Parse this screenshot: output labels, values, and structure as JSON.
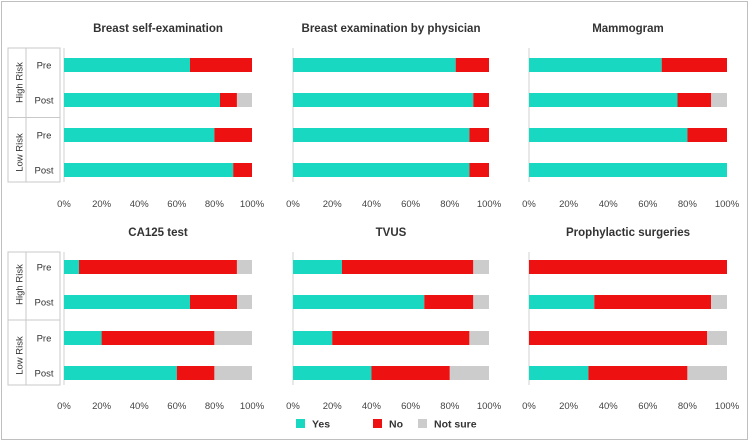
{
  "colors": {
    "yes": "#19d8c2",
    "no": "#ee1111",
    "not_sure": "#cccccc"
  },
  "legend": [
    {
      "key": "yes",
      "label": "Yes"
    },
    {
      "key": "no",
      "label": "No"
    },
    {
      "key": "not_sure",
      "label": "Not sure"
    }
  ],
  "row_groups": [
    {
      "label": "High Risk",
      "rows": [
        "Pre",
        "Post"
      ]
    },
    {
      "label": "Low Risk",
      "rows": [
        "Pre",
        "Post"
      ]
    }
  ],
  "x_ticks": [
    "0%",
    "20%",
    "40%",
    "60%",
    "80%",
    "100%"
  ],
  "chart_data": [
    {
      "type": "bar",
      "stacked": true,
      "orientation": "horizontal",
      "title": "Breast self-examination",
      "categories": [
        "High Risk Pre",
        "High Risk Post",
        "Low Risk Pre",
        "Low Risk Post"
      ],
      "series": [
        {
          "name": "Yes",
          "values": [
            67,
            83,
            80,
            90
          ]
        },
        {
          "name": "No",
          "values": [
            33,
            9,
            20,
            10
          ]
        },
        {
          "name": "Not sure",
          "values": [
            0,
            8,
            0,
            0
          ]
        }
      ],
      "xlim": [
        0,
        100
      ]
    },
    {
      "type": "bar",
      "stacked": true,
      "orientation": "horizontal",
      "title": "Breast examination by physician",
      "categories": [
        "High Risk Pre",
        "High Risk Post",
        "Low Risk Pre",
        "Low Risk Post"
      ],
      "series": [
        {
          "name": "Yes",
          "values": [
            83,
            92,
            90,
            90
          ]
        },
        {
          "name": "No",
          "values": [
            17,
            8,
            10,
            10
          ]
        },
        {
          "name": "Not sure",
          "values": [
            0,
            0,
            0,
            0
          ]
        }
      ],
      "xlim": [
        0,
        100
      ]
    },
    {
      "type": "bar",
      "stacked": true,
      "orientation": "horizontal",
      "title": "Mammogram",
      "categories": [
        "High Risk Pre",
        "High Risk Post",
        "Low Risk Pre",
        "Low Risk Post"
      ],
      "series": [
        {
          "name": "Yes",
          "values": [
            67,
            75,
            80,
            100
          ]
        },
        {
          "name": "No",
          "values": [
            33,
            17,
            20,
            0
          ]
        },
        {
          "name": "Not sure",
          "values": [
            0,
            8,
            0,
            0
          ]
        }
      ],
      "xlim": [
        0,
        100
      ]
    },
    {
      "type": "bar",
      "stacked": true,
      "orientation": "horizontal",
      "title": "CA125 test",
      "categories": [
        "High Risk Pre",
        "High Risk Post",
        "Low Risk Pre",
        "Low Risk Post"
      ],
      "series": [
        {
          "name": "Yes",
          "values": [
            8,
            67,
            20,
            60
          ]
        },
        {
          "name": "No",
          "values": [
            84,
            25,
            60,
            20
          ]
        },
        {
          "name": "Not sure",
          "values": [
            8,
            8,
            20,
            20
          ]
        }
      ],
      "xlim": [
        0,
        100
      ]
    },
    {
      "type": "bar",
      "stacked": true,
      "orientation": "horizontal",
      "title": "TVUS",
      "categories": [
        "High Risk Pre",
        "High Risk Post",
        "Low Risk Pre",
        "Low Risk Post"
      ],
      "series": [
        {
          "name": "Yes",
          "values": [
            25,
            67,
            20,
            40
          ]
        },
        {
          "name": "No",
          "values": [
            67,
            25,
            70,
            40
          ]
        },
        {
          "name": "Not sure",
          "values": [
            8,
            8,
            10,
            20
          ]
        }
      ],
      "xlim": [
        0,
        100
      ]
    },
    {
      "type": "bar",
      "stacked": true,
      "orientation": "horizontal",
      "title": "Prophylactic surgeries",
      "categories": [
        "High Risk Pre",
        "High Risk Post",
        "Low Risk Pre",
        "Low Risk Post"
      ],
      "series": [
        {
          "name": "Yes",
          "values": [
            0,
            33,
            0,
            30
          ]
        },
        {
          "name": "No",
          "values": [
            100,
            59,
            90,
            50
          ]
        },
        {
          "name": "Not sure",
          "values": [
            0,
            8,
            10,
            20
          ]
        }
      ],
      "xlim": [
        0,
        100
      ]
    }
  ]
}
